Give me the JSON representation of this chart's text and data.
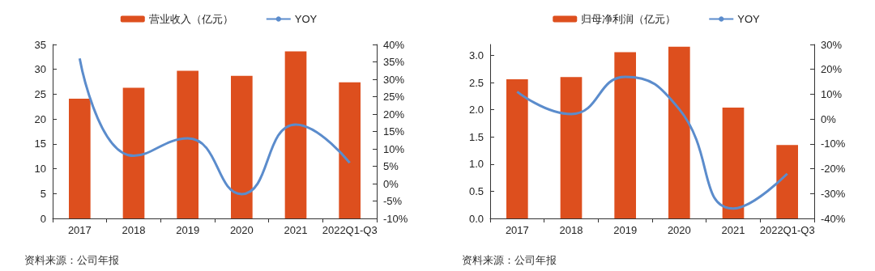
{
  "chart_data": [
    {
      "type": "bar",
      "categories": [
        "2017",
        "2018",
        "2019",
        "2020",
        "2021",
        "2022Q1-Q3"
      ],
      "legend": "top",
      "grid": false,
      "ylim": [
        0,
        35
      ],
      "yticks": [
        0,
        5,
        10,
        15,
        20,
        25,
        30,
        35
      ],
      "y2lim": [
        -10,
        40
      ],
      "y2ticks": [
        {
          "value": -10,
          "label": "-10%"
        },
        {
          "value": -5,
          "label": "-5%"
        },
        {
          "value": 0,
          "label": "0%"
        },
        {
          "value": 5,
          "label": "5%"
        },
        {
          "value": 10,
          "label": "10%"
        },
        {
          "value": 15,
          "label": "15%"
        },
        {
          "value": 20,
          "label": "20%"
        },
        {
          "value": 25,
          "label": "25%"
        },
        {
          "value": 30,
          "label": "30%"
        },
        {
          "value": 35,
          "label": "35%"
        },
        {
          "value": 40,
          "label": "40%"
        }
      ],
      "series": [
        {
          "name": "营业收入（亿元）",
          "color": "#dd4f1e",
          "values": [
            24.1,
            26.3,
            29.7,
            28.7,
            33.6,
            27.4
          ]
        },
        {
          "name": "YOY",
          "type": "line",
          "axis": "y2",
          "color": "#5b8ccc",
          "values": [
            36,
            8,
            13,
            -3,
            17,
            6
          ]
        }
      ],
      "annotations": [
        "资料来源：公司年报"
      ]
    },
    {
      "type": "bar",
      "categories": [
        "2017",
        "2018",
        "2019",
        "2020",
        "2021",
        "2022Q1-Q3"
      ],
      "legend": "top",
      "grid": false,
      "ylim": [
        0,
        3.2
      ],
      "yticks": [
        {
          "value": 0,
          "label": "0.0"
        },
        {
          "value": 0.5,
          "label": "0.5"
        },
        {
          "value": 1,
          "label": "1.0"
        },
        {
          "value": 1.5,
          "label": "1.5"
        },
        {
          "value": 2,
          "label": "2.0"
        },
        {
          "value": 2.5,
          "label": "2.5"
        },
        {
          "value": 3,
          "label": "3.0"
        }
      ],
      "y2lim": [
        -40,
        30
      ],
      "y2ticks": [
        {
          "value": -40,
          "label": "-40%"
        },
        {
          "value": -30,
          "label": "-30%"
        },
        {
          "value": -20,
          "label": "-20%"
        },
        {
          "value": -10,
          "label": "-10%"
        },
        {
          "value": 0,
          "label": "0%"
        },
        {
          "value": 10,
          "label": "10%"
        },
        {
          "value": 20,
          "label": "20%"
        },
        {
          "value": 30,
          "label": "30%"
        }
      ],
      "series": [
        {
          "name": "归母净利润（亿元）",
          "color": "#dd4f1e",
          "values": [
            2.56,
            2.6,
            3.06,
            3.16,
            2.04,
            1.35
          ]
        },
        {
          "name": "YOY",
          "type": "line",
          "axis": "y2",
          "color": "#5b8ccc",
          "values": [
            11,
            2,
            17,
            4,
            -36,
            -22
          ]
        }
      ],
      "annotations": [
        "资料来源：公司年报"
      ]
    }
  ]
}
